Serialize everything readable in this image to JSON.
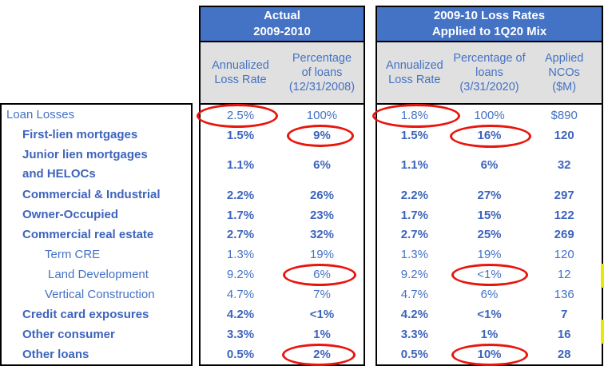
{
  "colors": {
    "header_bg": "#4472C4",
    "subheader_bg": "#E0E0E0",
    "text_blue": "#4472C4",
    "border": "#000000",
    "circle_red": "#E8150D",
    "highlight_yellow": "#E8E800"
  },
  "row_labels": [
    {
      "label": "Loan Losses"
    },
    {
      "label": "First-lien mortgages"
    },
    {
      "label": "Junior lien mortgages\nand HELOCs"
    },
    {
      "label": "Commercial & Industrial"
    },
    {
      "label": "Owner-Occupied"
    },
    {
      "label": "Commercial real estate"
    },
    {
      "label": "Term CRE"
    },
    {
      "label": "Land Development"
    },
    {
      "label": "Vertical Construction"
    },
    {
      "label": "Credit card exposures"
    },
    {
      "label": "Other consumer"
    },
    {
      "label": "Other loans"
    }
  ],
  "table_actual": {
    "title": "Actual\n2009-2010",
    "col_headers": [
      "Annualized\nLoss Rate",
      "Percentage\nof loans\n(12/31/2008)"
    ],
    "rows": [
      {
        "loss_rate": "2.5%",
        "pct_loans": "100%"
      },
      {
        "loss_rate": "1.5%",
        "pct_loans": "9%"
      },
      {
        "loss_rate": "1.1%",
        "pct_loans": "6%"
      },
      {
        "loss_rate": "2.2%",
        "pct_loans": "26%"
      },
      {
        "loss_rate": "1.7%",
        "pct_loans": "23%"
      },
      {
        "loss_rate": "2.7%",
        "pct_loans": "32%"
      },
      {
        "loss_rate": "1.3%",
        "pct_loans": "19%"
      },
      {
        "loss_rate": "9.2%",
        "pct_loans": "6%"
      },
      {
        "loss_rate": "4.7%",
        "pct_loans": "7%"
      },
      {
        "loss_rate": "4.2%",
        "pct_loans": "<1%"
      },
      {
        "loss_rate": "3.3%",
        "pct_loans": "1%"
      },
      {
        "loss_rate": "0.5%",
        "pct_loans": "2%"
      }
    ]
  },
  "table_applied": {
    "title": "2009-10 Loss Rates\nApplied to 1Q20 Mix",
    "col_headers": [
      "Annualized\nLoss Rate",
      "Percentage of\nloans\n(3/31/2020)",
      "Applied\nNCOs\n($M)"
    ],
    "rows": [
      {
        "loss_rate": "1.8%",
        "pct_loans": "100%",
        "applied_ncos": "$890"
      },
      {
        "loss_rate": "1.5%",
        "pct_loans": "16%",
        "applied_ncos": "120"
      },
      {
        "loss_rate": "1.1%",
        "pct_loans": "6%",
        "applied_ncos": "32"
      },
      {
        "loss_rate": "2.2%",
        "pct_loans": "27%",
        "applied_ncos": "297"
      },
      {
        "loss_rate": "1.7%",
        "pct_loans": "15%",
        "applied_ncos": "122"
      },
      {
        "loss_rate": "2.7%",
        "pct_loans": "25%",
        "applied_ncos": "269"
      },
      {
        "loss_rate": "1.3%",
        "pct_loans": "19%",
        "applied_ncos": "120"
      },
      {
        "loss_rate": "9.2%",
        "pct_loans": "<1%",
        "applied_ncos": "12"
      },
      {
        "loss_rate": "4.7%",
        "pct_loans": "6%",
        "applied_ncos": "136"
      },
      {
        "loss_rate": "4.2%",
        "pct_loans": "<1%",
        "applied_ncos": "7"
      },
      {
        "loss_rate": "3.3%",
        "pct_loans": "1%",
        "applied_ncos": "16"
      },
      {
        "loss_rate": "0.5%",
        "pct_loans": "10%",
        "applied_ncos": "28"
      }
    ]
  },
  "annotations": {
    "circled_cells": [
      {
        "table": "actual",
        "row": "Loan Losses",
        "column": "Annualized Loss Rate",
        "value": "2.5%"
      },
      {
        "table": "actual",
        "row": "First-lien mortgages",
        "column": "Percentage of loans",
        "value": "9%"
      },
      {
        "table": "actual",
        "row": "Land Development",
        "column": "Percentage of loans",
        "value": "6%"
      },
      {
        "table": "actual",
        "row": "Other loans",
        "column": "Percentage of loans",
        "value": "2%"
      },
      {
        "table": "applied",
        "row": "Loan Losses",
        "column": "Annualized Loss Rate",
        "value": "1.8%"
      },
      {
        "table": "applied",
        "row": "First-lien mortgages",
        "column": "Percentage of loans",
        "value": "16%"
      },
      {
        "table": "applied",
        "row": "Land Development",
        "column": "Percentage of loans",
        "value": "<1%"
      },
      {
        "table": "applied",
        "row": "Other loans",
        "column": "Percentage of loans",
        "value": "10%"
      }
    ]
  }
}
